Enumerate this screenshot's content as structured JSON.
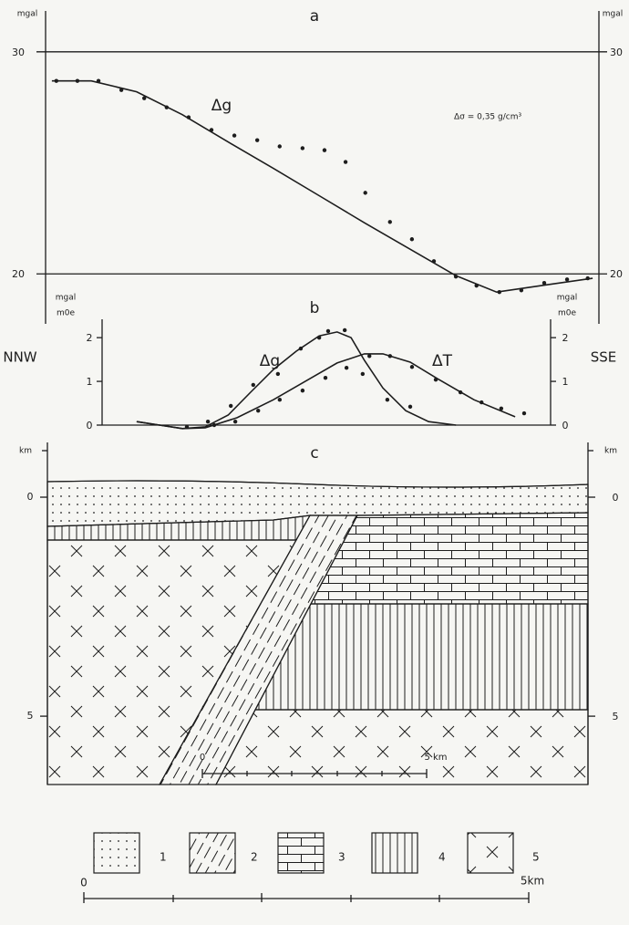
{
  "chart_data": [
    {
      "type": "line",
      "title": "a",
      "y_label": "mgal",
      "annotation": "Δσ = 0,35 g/cm³",
      "xlim": [
        0,
        12.34
      ],
      "ylim": [
        17.75,
        31.84
      ],
      "yticks": [
        20,
        30
      ],
      "grid": true,
      "color": "#1d1d1d",
      "series": [
        {
          "name": "Δg",
          "x": [
            0.14,
            1.02,
            2.03,
            3.05,
            4.07,
            5.08,
            6.1,
            7.11,
            8.13,
            9.15,
            10.06,
            11.18,
            12.2
          ],
          "values": [
            28.69,
            28.69,
            28.2,
            27.17,
            25.94,
            24.75,
            23.52,
            22.3,
            21.11,
            19.92,
            19.18,
            19.51,
            19.8
          ],
          "points_x": [
            0.24,
            0.71,
            1.18,
            1.69,
            2.2,
            2.7,
            3.19,
            3.7,
            4.21,
            4.72,
            5.22,
            5.73,
            6.22,
            6.69,
            7.13,
            7.68,
            8.17,
            8.66,
            9.15,
            9.61,
            10.12,
            10.61,
            11.12,
            11.63,
            12.09
          ],
          "points": [
            28.69,
            28.69,
            28.69,
            28.28,
            27.91,
            27.5,
            27.05,
            26.48,
            26.23,
            26.02,
            25.74,
            25.66,
            25.57,
            25.04,
            23.65,
            22.34,
            21.56,
            20.57,
            19.88,
            19.47,
            19.18,
            19.26,
            19.59,
            19.75,
            19.8
          ]
        }
      ]
    },
    {
      "type": "line",
      "title": "b",
      "y_labels": [
        "mgal",
        "m0e"
      ],
      "side_labels": [
        "NNW",
        "SSE"
      ],
      "xlim": [
        1.26,
        11.26
      ],
      "ylim": [
        0,
        2.42
      ],
      "yticks": [
        0,
        1,
        2
      ],
      "grid": false,
      "color": "#1d1d1d",
      "series": [
        {
          "name": "Δg",
          "x": [
            2.03,
            2.54,
            3.05,
            3.56,
            4.07,
            4.57,
            5.08,
            5.59,
            6.1,
            6.5,
            6.81,
            7.11,
            7.52,
            8.03,
            8.54,
            9.15
          ],
          "values": [
            0.08,
            0,
            -0.08,
            -0.04,
            0.23,
            0.75,
            1.27,
            1.69,
            2.04,
            2.13,
            2.0,
            1.48,
            0.85,
            0.33,
            0.08,
            0
          ],
          "points_x": [
            3.15,
            3.62,
            4.13,
            4.63,
            5.18,
            5.69,
            6.1,
            6.3,
            6.67,
            7.07,
            7.62,
            8.13
          ],
          "points": [
            -0.04,
            0.08,
            0.44,
            0.92,
            1.17,
            1.75,
            2.0,
            2.15,
            2.17,
            1.17,
            0.58,
            0.42
          ]
        },
        {
          "name": "ΔT",
          "x": [
            2.03,
            2.54,
            3.05,
            3.56,
            4.27,
            5.08,
            5.89,
            6.5,
            7.11,
            7.52,
            8.13,
            8.74,
            9.55,
            10.47
          ],
          "values": [
            0.08,
            0,
            -0.08,
            -0.06,
            0.17,
            0.58,
            1.06,
            1.42,
            1.63,
            1.63,
            1.44,
            1.06,
            0.58,
            0.19
          ],
          "points_x": [
            3.76,
            4.23,
            4.74,
            5.22,
            5.73,
            6.24,
            6.71,
            7.22,
            7.68,
            8.17,
            8.7,
            9.25,
            9.72,
            10.16,
            10.67
          ],
          "points": [
            0,
            0.08,
            0.33,
            0.58,
            0.79,
            1.08,
            1.31,
            1.58,
            1.58,
            1.33,
            1.04,
            0.75,
            0.52,
            0.38,
            0.27
          ]
        }
      ]
    },
    {
      "type": "section",
      "title": "c",
      "y_label": "km",
      "ylim": [
        -1.25,
        6.56
      ],
      "yticks": [
        0,
        5
      ],
      "legend": [
        "1",
        "2",
        "3",
        "4",
        "5"
      ],
      "scale_bars": [
        {
          "start": "0",
          "end": "5 km"
        },
        {
          "start": "0",
          "end": "5km"
        }
      ]
    }
  ]
}
